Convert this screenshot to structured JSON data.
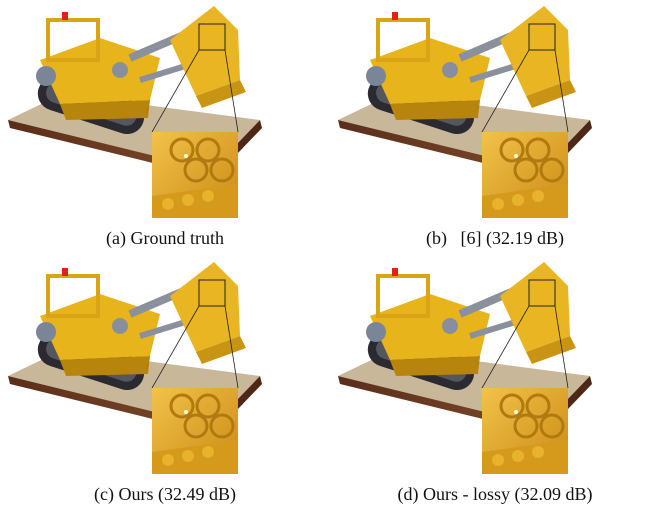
{
  "figure": {
    "panels": [
      {
        "caption": "(a) Ground truth"
      },
      {
        "caption": "(b)   [6] (32.19 dB)"
      },
      {
        "caption": "(c) Ours (32.49 dB)"
      },
      {
        "caption": "(d) Ours - lossy (32.09 dB)"
      }
    ]
  },
  "colors": {
    "lego_yellow": "#e8b41c",
    "lego_dark_yellow": "#b8850c",
    "tread_dark": "#2a2a30",
    "base_brown": "#6b3a22",
    "base_tan": "#c8b99e",
    "inset_yellow": "#e0a522",
    "red_light": "#e0201a"
  }
}
